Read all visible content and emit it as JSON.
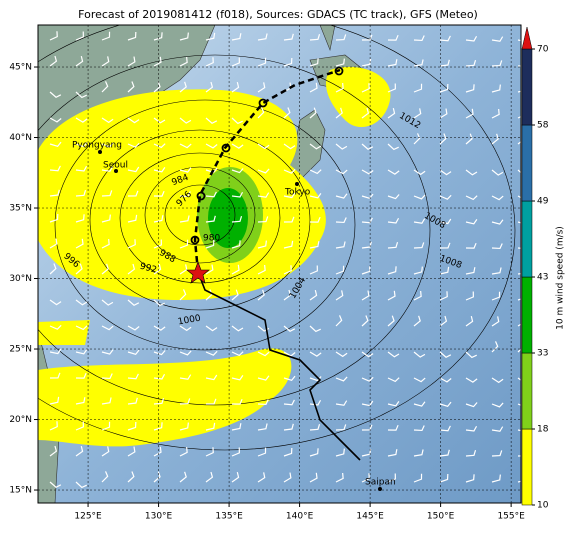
{
  "title": "Forecast of 2019081412 (f018), Sources: GDACS (TC track), GFS (Meteo)",
  "map": {
    "xlim": [
      121.45,
      155.7
    ],
    "ylim": [
      14.08,
      47.98
    ],
    "lon_ticks": [
      {
        "value": 125,
        "label": "125°E"
      },
      {
        "value": 130,
        "label": "130°E"
      },
      {
        "value": 135,
        "label": "135°E"
      },
      {
        "value": 140,
        "label": "140°E"
      },
      {
        "value": 145,
        "label": "145°E"
      },
      {
        "value": 150,
        "label": "150°E"
      },
      {
        "value": 155,
        "label": "155°E"
      }
    ],
    "lat_ticks": [
      {
        "value": 15,
        "label": "15°N"
      },
      {
        "value": 20,
        "label": "20°N"
      },
      {
        "value": 25,
        "label": "25°N"
      },
      {
        "value": 30,
        "label": "30°N"
      },
      {
        "value": 35,
        "label": "35°N"
      },
      {
        "value": 40,
        "label": "40°N"
      },
      {
        "value": 45,
        "label": "45°N"
      }
    ],
    "cities": [
      "Pyongyang",
      "Seoul",
      "Tokyo",
      "Saipan"
    ],
    "isobar_labels": [
      "1012",
      "1008",
      "1008",
      "1004",
      "1000",
      "996",
      "992",
      "988",
      "984",
      "980",
      "976"
    ]
  },
  "colorbar": {
    "label": "10 m wind speed (m/s)",
    "ticks": [
      10,
      18,
      33,
      43,
      49,
      58,
      70
    ],
    "colors": [
      "#ffff00",
      "#80d01a",
      "#00b000",
      "#00a0a0",
      "#2a6fa8",
      "#1d2d5c"
    ],
    "extend_color": "#dd1111"
  }
}
